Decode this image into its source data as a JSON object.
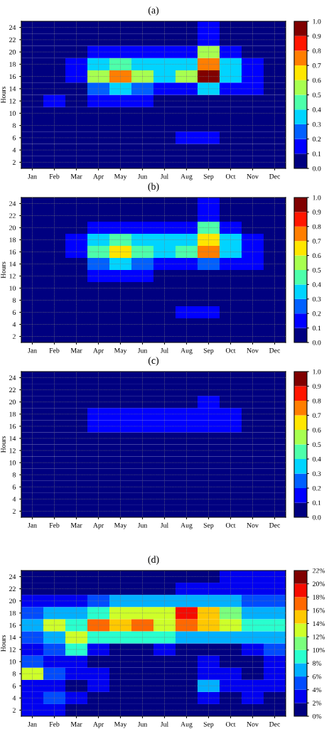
{
  "chart_data": [
    {
      "type": "heatmap",
      "title": "(a)",
      "ylabel": "Hours",
      "grid": true,
      "categories": [
        "Jan",
        "Feb",
        "Mar",
        "Apr",
        "May",
        "Jun",
        "Jul",
        "Aug",
        "Sep",
        "Oct",
        "Nov",
        "Dec"
      ],
      "y_categories": [
        "24",
        "22",
        "20",
        "18",
        "16",
        "14",
        "12",
        "10",
        "8",
        "6",
        "4",
        "2"
      ],
      "cells": [
        [
          0,
          0,
          0,
          0,
          0,
          0,
          0,
          0,
          0.1,
          0,
          0,
          0
        ],
        [
          0,
          0,
          0,
          0,
          0,
          0,
          0,
          0,
          0.15,
          0,
          0,
          0
        ],
        [
          0,
          0,
          0,
          0.15,
          0.15,
          0.1,
          0.1,
          0.15,
          0.55,
          0.15,
          0,
          0
        ],
        [
          0,
          0,
          0.1,
          0.35,
          0.45,
          0.35,
          0.3,
          0.35,
          0.75,
          0.3,
          0.1,
          0
        ],
        [
          0,
          0,
          0.1,
          0.5,
          0.75,
          0.5,
          0.35,
          0.5,
          0.95,
          0.35,
          0.1,
          0
        ],
        [
          0,
          0,
          0.05,
          0.25,
          0.35,
          0.25,
          0.1,
          0.15,
          0.3,
          0.15,
          0.1,
          0
        ],
        [
          0,
          0.1,
          0,
          0.1,
          0.1,
          0.1,
          0,
          0,
          0,
          0,
          0,
          0
        ],
        [
          0,
          0,
          0,
          0,
          0,
          0,
          0,
          0,
          0,
          0,
          0,
          0
        ],
        [
          0,
          0,
          0,
          0,
          0,
          0,
          0,
          0,
          0,
          0,
          0,
          0
        ],
        [
          0,
          0,
          0,
          0,
          0,
          0,
          0,
          0.1,
          0.15,
          0,
          0,
          0
        ],
        [
          0,
          0,
          0,
          0,
          0,
          0,
          0,
          0,
          0,
          0,
          0,
          0
        ],
        [
          0,
          0,
          0,
          0,
          0,
          0,
          0,
          0,
          0,
          0,
          0,
          0
        ]
      ],
      "clim": [
        0,
        1
      ],
      "cticks": [
        {
          "value": 0,
          "label": "0.0"
        },
        0.1,
        0.2,
        0.3,
        0.4,
        0.5,
        0.6,
        0.7,
        0.8,
        0.9,
        {
          "value": 1,
          "label": "1.0"
        }
      ]
    },
    {
      "type": "heatmap",
      "title": "(b)",
      "ylabel": "Hours",
      "grid": true,
      "categories": [
        "Jan",
        "Feb",
        "Mar",
        "Apr",
        "May",
        "Jun",
        "Jul",
        "Aug",
        "Sep",
        "Oct",
        "Nov",
        "Dec"
      ],
      "y_categories": [
        "24",
        "22",
        "20",
        "18",
        "16",
        "14",
        "12",
        "10",
        "8",
        "6",
        "4",
        "2"
      ],
      "cells": [
        [
          0,
          0,
          0,
          0,
          0,
          0,
          0,
          0,
          0.1,
          0,
          0,
          0
        ],
        [
          0,
          0,
          0,
          0,
          0,
          0,
          0,
          0,
          0.15,
          0,
          0,
          0
        ],
        [
          0,
          0,
          0,
          0.15,
          0.15,
          0.1,
          0.1,
          0.15,
          0.45,
          0.15,
          0,
          0
        ],
        [
          0,
          0,
          0.1,
          0.35,
          0.4,
          0.3,
          0.3,
          0.35,
          0.6,
          0.3,
          0.1,
          0
        ],
        [
          0,
          0,
          0.1,
          0.45,
          0.65,
          0.45,
          0.3,
          0.45,
          0.75,
          0.3,
          0.1,
          0
        ],
        [
          0,
          0,
          0.05,
          0.2,
          0.3,
          0.2,
          0.1,
          0.15,
          0.25,
          0.15,
          0.1,
          0
        ],
        [
          0,
          0,
          0,
          0.1,
          0.1,
          0.1,
          0,
          0,
          0,
          0,
          0,
          0
        ],
        [
          0,
          0,
          0,
          0,
          0,
          0,
          0,
          0,
          0,
          0,
          0,
          0
        ],
        [
          0,
          0,
          0,
          0,
          0,
          0,
          0,
          0,
          0,
          0,
          0,
          0
        ],
        [
          0,
          0,
          0,
          0,
          0,
          0,
          0,
          0.1,
          0.15,
          0,
          0,
          0
        ],
        [
          0,
          0,
          0,
          0,
          0,
          0,
          0,
          0,
          0,
          0,
          0,
          0
        ],
        [
          0,
          0,
          0,
          0,
          0,
          0,
          0,
          0,
          0,
          0,
          0,
          0
        ]
      ],
      "clim": [
        0,
        1
      ],
      "cticks": [
        {
          "value": 0,
          "label": "0.0"
        },
        0.1,
        0.2,
        0.3,
        0.4,
        0.5,
        0.6,
        0.7,
        0.8,
        0.9,
        {
          "value": 1,
          "label": "1.0"
        }
      ]
    },
    {
      "type": "heatmap",
      "title": "(c)",
      "ylabel": "Hours",
      "grid": true,
      "categories": [
        "Jan",
        "Feb",
        "Mar",
        "Apr",
        "May",
        "Jun",
        "Jul",
        "Aug",
        "Sep",
        "Oct",
        "Nov",
        "Dec"
      ],
      "y_categories": [
        "24",
        "22",
        "20",
        "18",
        "16",
        "14",
        "12",
        "10",
        "8",
        "6",
        "4",
        "2"
      ],
      "cells": [
        [
          0,
          0,
          0,
          0,
          0,
          0,
          0,
          0,
          0,
          0,
          0,
          0
        ],
        [
          0,
          0,
          0,
          0,
          0,
          0,
          0,
          0,
          0.05,
          0,
          0,
          0
        ],
        [
          0,
          0,
          0,
          0.05,
          0.05,
          0.05,
          0.05,
          0.05,
          0.1,
          0.05,
          0,
          0
        ],
        [
          0,
          0,
          0.05,
          0.12,
          0.1,
          0.1,
          0.1,
          0.1,
          0.15,
          0.1,
          0.05,
          0
        ],
        [
          0,
          0,
          0.05,
          0.1,
          0.15,
          0.12,
          0.1,
          0.12,
          0.18,
          0.1,
          0.05,
          0
        ],
        [
          0,
          0,
          0,
          0.05,
          0.05,
          0.05,
          0.05,
          0.05,
          0.05,
          0.05,
          0,
          0
        ],
        [
          0,
          0,
          0,
          0,
          0,
          0,
          0,
          0,
          0,
          0,
          0,
          0
        ],
        [
          0,
          0,
          0,
          0,
          0,
          0,
          0,
          0,
          0,
          0,
          0,
          0
        ],
        [
          0,
          0,
          0,
          0,
          0,
          0,
          0,
          0,
          0,
          0,
          0,
          0
        ],
        [
          0,
          0,
          0,
          0,
          0,
          0,
          0,
          0,
          0.05,
          0,
          0,
          0
        ],
        [
          0,
          0,
          0,
          0,
          0,
          0,
          0,
          0,
          0,
          0,
          0,
          0
        ],
        [
          0,
          0,
          0,
          0,
          0,
          0,
          0,
          0,
          0,
          0,
          0,
          0
        ]
      ],
      "clim": [
        0,
        1
      ],
      "cticks": [
        {
          "value": 0,
          "label": "0.0"
        },
        0.1,
        0.2,
        0.3,
        0.4,
        0.5,
        0.6,
        0.7,
        0.8,
        0.9,
        {
          "value": 1,
          "label": "1.0"
        }
      ]
    },
    {
      "type": "heatmap",
      "title": "(d)",
      "ylabel": "Hours",
      "grid": true,
      "categories": [
        "Jan",
        "Feb",
        "Mar",
        "Apr",
        "May",
        "Jun",
        "Jul",
        "Aug",
        "Sep",
        "Oct",
        "Nov",
        "Dec"
      ],
      "y_categories": [
        "24",
        "22",
        "20",
        "18",
        "16",
        "14",
        "12",
        "10",
        "8",
        "6",
        "4",
        "2"
      ],
      "cells": [
        [
          1,
          1,
          1,
          1,
          1,
          1,
          1,
          1,
          1,
          2,
          3,
          2
        ],
        [
          1,
          1,
          1,
          1,
          1,
          1,
          1,
          2,
          2,
          3,
          3,
          3
        ],
        [
          3,
          3,
          3,
          4,
          6,
          6,
          6,
          6,
          6,
          6,
          4,
          4
        ],
        [
          5,
          6,
          7,
          9,
          12,
          12,
          13,
          19,
          14,
          10,
          7,
          6
        ],
        [
          6,
          13,
          9,
          17,
          14,
          17,
          13,
          16,
          14,
          13,
          9,
          8
        ],
        [
          4,
          6,
          12,
          9,
          9,
          8,
          8,
          6,
          6,
          6,
          6,
          6
        ],
        [
          3,
          4,
          8,
          3,
          1,
          1,
          2,
          1,
          1,
          1,
          3,
          4
        ],
        [
          5,
          3,
          2,
          1,
          1,
          1,
          1,
          1,
          2,
          1,
          1,
          2
        ],
        [
          12,
          5,
          2,
          2,
          1,
          1,
          1,
          1,
          3,
          2,
          1,
          2
        ],
        [
          3,
          2,
          1,
          3,
          1,
          1,
          1,
          1,
          6,
          3,
          2,
          2
        ],
        [
          2,
          4,
          2,
          1,
          1,
          1,
          1,
          1,
          2,
          1,
          2,
          1
        ],
        [
          2,
          2,
          1,
          1,
          1,
          1,
          1,
          1,
          1,
          1,
          1,
          1
        ]
      ],
      "clim": [
        0,
        22
      ],
      "cticks": [
        {
          "value": 0,
          "label": "0%"
        },
        {
          "value": 2,
          "label": "2%"
        },
        {
          "value": 4,
          "label": "4%"
        },
        {
          "value": 6,
          "label": "6%"
        },
        {
          "value": 8,
          "label": "8%"
        },
        {
          "value": 10,
          "label": "10%"
        },
        {
          "value": 12,
          "label": "12%"
        },
        {
          "value": 14,
          "label": "14%"
        },
        {
          "value": 16,
          "label": "16%"
        },
        {
          "value": 18,
          "label": "18%"
        },
        {
          "value": 20,
          "label": "20%"
        },
        {
          "value": 22,
          "label": "22%"
        }
      ]
    }
  ]
}
